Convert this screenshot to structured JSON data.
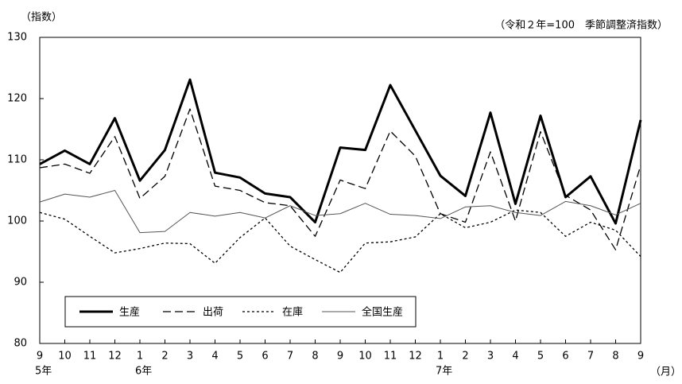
{
  "chart_data": {
    "type": "line",
    "y_unit": "（指数）",
    "note": "（令和２年=100　季節調整済指数）",
    "x_unit": "（月）",
    "categories": [
      "9",
      "10",
      "11",
      "12",
      "1",
      "2",
      "3",
      "4",
      "5",
      "6",
      "7",
      "8",
      "9",
      "10",
      "11",
      "12",
      "1",
      "2",
      "3",
      "4",
      "5",
      "6",
      "7",
      "8",
      "9"
    ],
    "year_labels": [
      "5年",
      null,
      null,
      null,
      "6年",
      null,
      null,
      null,
      null,
      null,
      null,
      null,
      null,
      null,
      null,
      null,
      "7年",
      null,
      null,
      null,
      null,
      null,
      null,
      null,
      null
    ],
    "ylim": [
      80,
      130
    ],
    "yticks": [
      80,
      90,
      100,
      110,
      120,
      130
    ],
    "grid": false,
    "series": [
      {
        "name": "生産",
        "color": "#000000",
        "line_style": "thick",
        "values": [
          109.3,
          111.5,
          109.3,
          116.8,
          106.6,
          111.6,
          123.1,
          107.9,
          107.1,
          104.5,
          103.9,
          99.8,
          112.0,
          111.6,
          122.2,
          114.8,
          107.4,
          104.1,
          117.7,
          102.8,
          117.2,
          103.9,
          107.3,
          99.6,
          116.5
        ]
      },
      {
        "name": "出荷",
        "color": "#000000",
        "line_style": "dashed",
        "values": [
          108.7,
          109.3,
          107.8,
          113.8,
          103.7,
          107.3,
          118.3,
          105.7,
          105.0,
          103.0,
          102.5,
          97.5,
          106.7,
          105.3,
          114.7,
          110.6,
          101.2,
          99.8,
          111.3,
          100.0,
          114.6,
          104.2,
          101.8,
          95.3,
          109.1
        ]
      },
      {
        "name": "在庫",
        "color": "#000000",
        "line_style": "dotted",
        "values": [
          101.4,
          100.3,
          97.5,
          94.8,
          95.5,
          96.4,
          96.3,
          93.1,
          97.3,
          100.5,
          95.9,
          93.7,
          91.6,
          96.4,
          96.6,
          97.4,
          101.2,
          98.9,
          99.8,
          101.8,
          101.4,
          97.5,
          99.8,
          98.5,
          94.2
        ]
      },
      {
        "name": "全国生産",
        "color": "#555555",
        "line_style": "thin",
        "values": [
          103.1,
          104.4,
          103.9,
          105.0,
          98.1,
          98.3,
          101.4,
          100.8,
          101.4,
          100.5,
          102.5,
          100.9,
          101.2,
          102.9,
          101.1,
          100.9,
          100.4,
          102.3,
          102.5,
          101.4,
          100.9,
          103.2,
          102.5,
          101.0,
          102.9
        ]
      }
    ]
  }
}
